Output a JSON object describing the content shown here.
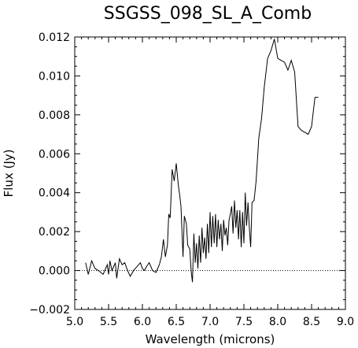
{
  "chart_data": {
    "type": "line",
    "title": "SSGSS_098_SL_A_Comb",
    "xlabel": "Wavelength (microns)",
    "ylabel": "Flux (Jy)",
    "xlim": [
      5.0,
      9.0
    ],
    "ylim": [
      -0.002,
      0.012
    ],
    "xticks": [
      "5.0",
      "5.5",
      "6.0",
      "6.5",
      "7.0",
      "7.5",
      "8.0",
      "8.5",
      "9.0"
    ],
    "yticks": [
      "−0.002",
      "0.000",
      "0.002",
      "0.004",
      "0.006",
      "0.008",
      "0.010",
      "0.012"
    ],
    "zero_line": true,
    "grid": false,
    "series": [
      {
        "x": [
          5.16,
          5.2,
          5.25,
          5.3,
          5.35,
          5.42,
          5.48,
          5.5,
          5.52,
          5.55,
          5.6,
          5.62,
          5.66,
          5.7,
          5.74,
          5.78,
          5.82,
          5.87,
          5.92,
          5.97,
          6.0,
          6.03,
          6.06,
          6.1,
          6.15,
          6.2,
          6.25,
          6.28,
          6.31,
          6.34,
          6.37,
          6.39,
          6.41,
          6.44,
          6.47,
          6.5,
          6.53,
          6.55,
          6.57,
          6.6,
          6.62,
          6.65,
          6.67,
          6.7,
          6.72,
          6.74,
          6.76,
          6.78,
          6.8,
          6.82,
          6.84,
          6.86,
          6.88,
          6.9,
          6.92,
          6.94,
          6.96,
          6.98,
          7.0,
          7.02,
          7.04,
          7.06,
          7.08,
          7.1,
          7.12,
          7.14,
          7.16,
          7.18,
          7.2,
          7.22,
          7.24,
          7.26,
          7.28,
          7.3,
          7.32,
          7.34,
          7.36,
          7.38,
          7.4,
          7.42,
          7.44,
          7.46,
          7.48,
          7.5,
          7.52,
          7.54,
          7.56,
          7.58,
          7.6,
          7.62,
          7.65,
          7.68,
          7.72,
          7.76,
          7.8,
          7.85,
          7.9,
          7.95,
          8.0,
          8.05,
          8.1,
          8.15,
          8.2,
          8.25,
          8.3,
          8.35,
          8.4,
          8.45,
          8.5,
          8.55,
          8.6
        ],
        "y": [
          0.0004,
          -0.0002,
          0.0005,
          0.0001,
          0.0,
          -0.0002,
          0.0003,
          -0.0002,
          0.0005,
          0.0,
          0.0004,
          -0.0004,
          0.0006,
          0.0003,
          0.0004,
          0.0,
          -0.0003,
          0.0,
          0.0002,
          0.0004,
          0.0001,
          0.0,
          0.0002,
          0.0004,
          0.0,
          -0.0001,
          0.0003,
          0.0007,
          0.0016,
          0.0007,
          0.0013,
          0.0029,
          0.0027,
          0.0052,
          0.0046,
          0.0055,
          0.0044,
          0.0039,
          0.0033,
          0.0007,
          0.0028,
          0.0024,
          0.0013,
          0.0011,
          0.0,
          -0.0006,
          0.0019,
          0.0004,
          0.0014,
          0.0001,
          0.0018,
          0.0004,
          0.0022,
          0.0009,
          0.0017,
          0.0006,
          0.0024,
          0.0009,
          0.003,
          0.0012,
          0.0028,
          0.0014,
          0.0029,
          0.0012,
          0.0026,
          0.0016,
          0.0024,
          0.001,
          0.0026,
          0.0018,
          0.0022,
          0.0013,
          0.0026,
          0.0029,
          0.0033,
          0.0019,
          0.0036,
          0.0022,
          0.0031,
          0.0016,
          0.0031,
          0.0012,
          0.003,
          0.0014,
          0.004,
          0.0023,
          0.0035,
          0.0022,
          0.0012,
          0.0035,
          0.0036,
          0.0046,
          0.0068,
          0.0078,
          0.0094,
          0.0109,
          0.0113,
          0.0119,
          0.0109,
          0.0108,
          0.0107,
          0.0103,
          0.0108,
          0.0102,
          0.0074,
          0.0072,
          0.0071,
          0.007,
          0.0074,
          0.0089,
          0.0089
        ]
      }
    ]
  }
}
